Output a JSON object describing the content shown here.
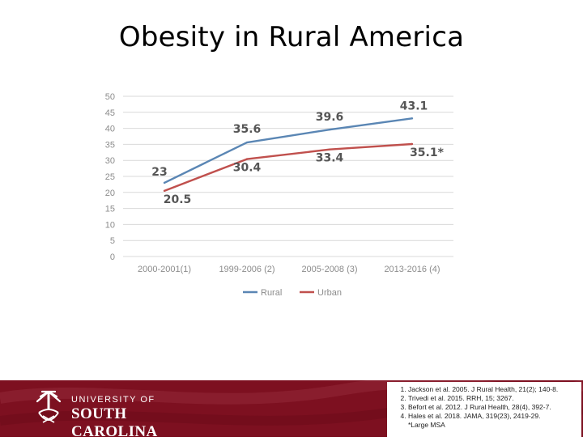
{
  "title": "Obesity in Rural America",
  "chart_data": {
    "type": "line",
    "categories": [
      "2000-2001(1)",
      "1999-2006 (2)",
      "2005-2008 (3)",
      "2013-2016 (4)"
    ],
    "series": [
      {
        "name": "Rural",
        "values": [
          23,
          35.6,
          39.6,
          43.1
        ],
        "labels": [
          "23",
          "35.6",
          "39.6",
          "43.1"
        ],
        "color": "#5a86b4"
      },
      {
        "name": "Urban",
        "values": [
          20.5,
          30.4,
          33.4,
          35.1
        ],
        "labels": [
          "20.5",
          "30.4",
          "33.4",
          "35.1*"
        ],
        "color": "#c0504d"
      }
    ],
    "ylim": [
      0,
      50
    ],
    "yticks": [
      0,
      5,
      10,
      15,
      20,
      25,
      30,
      35,
      40,
      45,
      50
    ],
    "legend": "bottom",
    "grid": true
  },
  "footer": {
    "logo_top": "UNIVERSITY OF",
    "logo_bottom": "SOUTH CAROLINA",
    "references": [
      "Jackson et al. 2005. J Rural Health, 21(2); 140-8.",
      "Trivedi et al. 2015. RRH, 15; 3267.",
      "Befort et al. 2012. J Rural Health, 28(4), 392-7.",
      "Hales et al. 2018. JAMA, 319(23), 2419-29."
    ],
    "note": "*Large MSA"
  }
}
